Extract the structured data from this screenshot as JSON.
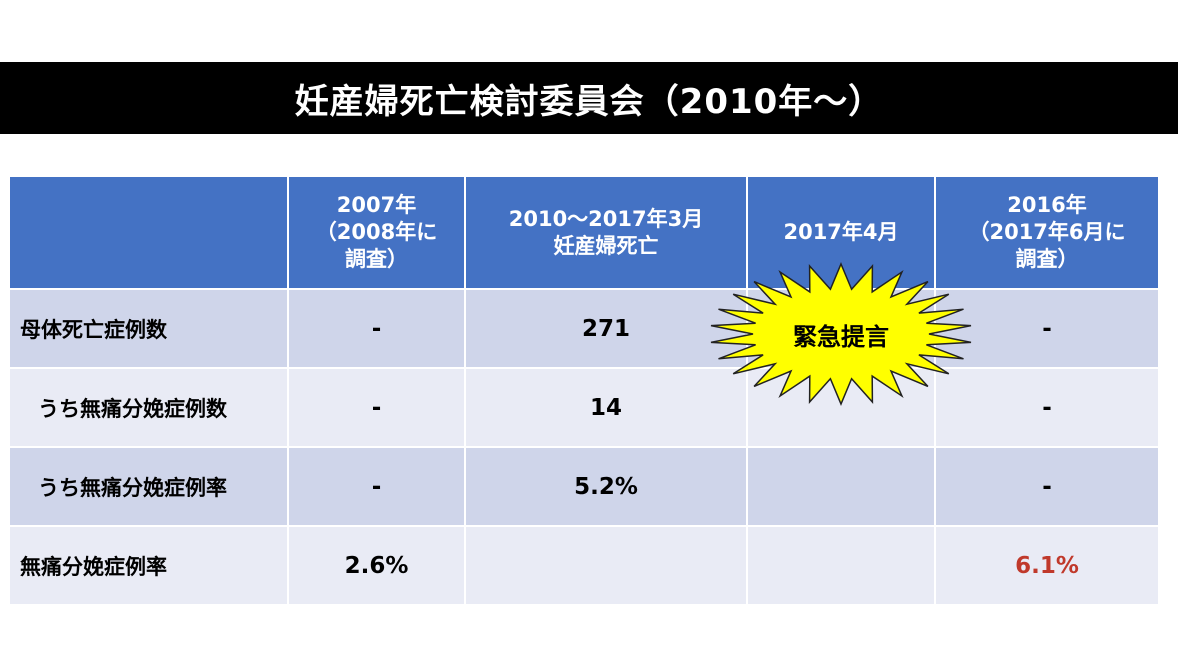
{
  "title": "妊産婦死亡検討委員会（2010年〜）",
  "header": {
    "col1": "",
    "col2": [
      "2007年",
      "（2008年に",
      "調査）"
    ],
    "col3": [
      "2010〜2017年3月",
      "妊産婦死亡"
    ],
    "col4": "2017年4月",
    "col5": [
      "2016年",
      "（2017年6月に",
      "調査）"
    ]
  },
  "rows": [
    {
      "label": "母体死亡症例数",
      "c2": "-",
      "c3": "271",
      "c4": "",
      "c5": "-"
    },
    {
      "label": "うち無痛分娩症例数",
      "c2": "-",
      "c3": "14",
      "c4": "",
      "c5": "-"
    },
    {
      "label": "うち無痛分娩症例率",
      "c2": "-",
      "c3": "5.2%",
      "c4": "",
      "c5": "-"
    },
    {
      "label": "無痛分娩症例率",
      "c2": "2.6%",
      "c3": "",
      "c4": "",
      "c5": "6.1%"
    }
  ],
  "burst": {
    "label": "緊急提言",
    "fill": "#ffff00",
    "stroke": "#222222"
  },
  "colors": {
    "header": "#4472c4",
    "row_dark": "#cfd5ea",
    "row_light": "#e9ebf5",
    "highlight": "#c0392b"
  }
}
